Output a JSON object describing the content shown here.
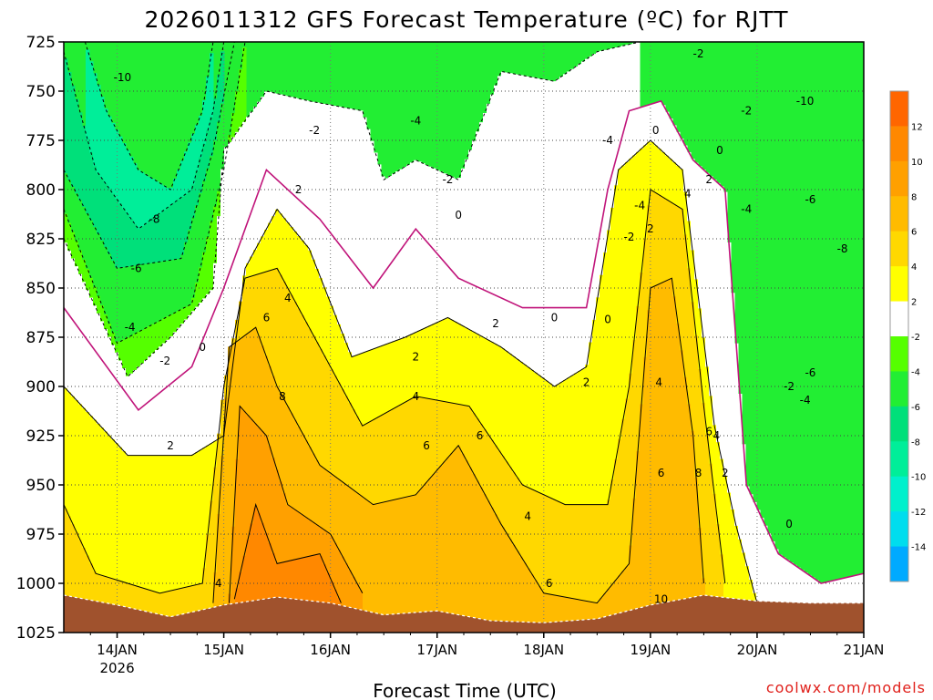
{
  "chart_data": {
    "type": "heatmap",
    "title": "2026011312 GFS Forecast Temperature (ºC) for RJTT",
    "xlabel": "Forecast Time (UTC)",
    "ylabel": "",
    "credit": "coolwx.com/models",
    "x_ticks": [
      {
        "label": "14JAN",
        "sub": "2026",
        "day": 0.5
      },
      {
        "label": "15JAN",
        "sub": "",
        "day": 1.5
      },
      {
        "label": "16JAN",
        "sub": "",
        "day": 2.5
      },
      {
        "label": "17JAN",
        "sub": "",
        "day": 3.5
      },
      {
        "label": "18JAN",
        "sub": "",
        "day": 4.5
      },
      {
        "label": "19JAN",
        "sub": "",
        "day": 5.5
      },
      {
        "label": "20JAN",
        "sub": "",
        "day": 6.5
      },
      {
        "label": "21JAN",
        "sub": "",
        "day": 7.5
      }
    ],
    "xlim": [
      0,
      7.5
    ],
    "y_ticks": [
      725,
      750,
      775,
      800,
      825,
      850,
      875,
      900,
      925,
      950,
      975,
      1000,
      1025
    ],
    "ylim": [
      725,
      1025
    ],
    "colorbar_ticks": [
      12,
      10,
      8,
      6,
      4,
      2,
      -2,
      -4,
      -6,
      -8,
      -10,
      -12,
      -14
    ],
    "colorbar_bins": [
      {
        "lo": 12,
        "hi": 14,
        "color": "#ff6600"
      },
      {
        "lo": 10,
        "hi": 12,
        "color": "#ff8800"
      },
      {
        "lo": 8,
        "hi": 10,
        "color": "#ffa000"
      },
      {
        "lo": 6,
        "hi": 8,
        "color": "#ffbb00"
      },
      {
        "lo": 4,
        "hi": 6,
        "color": "#ffd800"
      },
      {
        "lo": 2,
        "hi": 4,
        "color": "#ffff00"
      },
      {
        "lo": -2,
        "hi": 2,
        "color": "#ffffff"
      },
      {
        "lo": -4,
        "hi": -2,
        "color": "#55ff00"
      },
      {
        "lo": -6,
        "hi": -4,
        "color": "#22ee33"
      },
      {
        "lo": -8,
        "hi": -6,
        "color": "#00e07a"
      },
      {
        "lo": -10,
        "hi": -8,
        "color": "#00ee99"
      },
      {
        "lo": -12,
        "hi": -10,
        "color": "#00f0cc"
      },
      {
        "lo": -14,
        "hi": -12,
        "color": "#00ddee"
      },
      {
        "lo": -16,
        "hi": -14,
        "color": "#00aaff"
      }
    ],
    "ground_color": "#a0522d",
    "surface_pressure": [
      {
        "day": 0.0,
        "p": 1006
      },
      {
        "day": 0.5,
        "p": 1011
      },
      {
        "day": 1.0,
        "p": 1017
      },
      {
        "day": 1.5,
        "p": 1011
      },
      {
        "day": 2.0,
        "p": 1007
      },
      {
        "day": 2.5,
        "p": 1010
      },
      {
        "day": 3.0,
        "p": 1016
      },
      {
        "day": 3.5,
        "p": 1014
      },
      {
        "day": 4.0,
        "p": 1019
      },
      {
        "day": 4.5,
        "p": 1020
      },
      {
        "day": 5.0,
        "p": 1018
      },
      {
        "day": 5.5,
        "p": 1011
      },
      {
        "day": 6.0,
        "p": 1006
      },
      {
        "day": 6.5,
        "p": 1009
      },
      {
        "day": 7.0,
        "p": 1010
      },
      {
        "day": 7.5,
        "p": 1010
      }
    ],
    "series": [
      {
        "name": "-10",
        "level": -10,
        "dashed": true,
        "points": [
          {
            "day": 0.2,
            "p": 725
          },
          {
            "day": 0.4,
            "p": 760
          },
          {
            "day": 0.7,
            "p": 790
          },
          {
            "day": 1.0,
            "p": 800
          },
          {
            "day": 1.3,
            "p": 760
          },
          {
            "day": 1.4,
            "p": 725
          }
        ]
      },
      {
        "name": "-8",
        "level": -8,
        "dashed": true,
        "points": [
          {
            "day": 0.0,
            "p": 730
          },
          {
            "day": 0.3,
            "p": 790
          },
          {
            "day": 0.7,
            "p": 820
          },
          {
            "day": 1.2,
            "p": 800
          },
          {
            "day": 1.4,
            "p": 760
          },
          {
            "day": 1.5,
            "p": 725
          }
        ]
      },
      {
        "name": "-6",
        "level": -6,
        "dashed": true,
        "points": [
          {
            "day": 0.0,
            "p": 790
          },
          {
            "day": 0.5,
            "p": 840
          },
          {
            "day": 1.1,
            "p": 835
          },
          {
            "day": 1.4,
            "p": 780
          },
          {
            "day": 1.6,
            "p": 725
          }
        ]
      },
      {
        "name": "-4",
        "level": -4,
        "dashed": true,
        "points": [
          {
            "day": 0.0,
            "p": 810
          },
          {
            "day": 0.5,
            "p": 878
          },
          {
            "day": 1.2,
            "p": 858
          },
          {
            "day": 1.5,
            "p": 790
          },
          {
            "day": 1.7,
            "p": 725
          }
        ]
      },
      {
        "name": "-2",
        "level": -2,
        "dashed": true,
        "points": [
          {
            "day": 0.0,
            "p": 825
          },
          {
            "day": 0.6,
            "p": 895
          },
          {
            "day": 1.0,
            "p": 875
          },
          {
            "day": 1.4,
            "p": 850
          },
          {
            "day": 1.5,
            "p": 780
          },
          {
            "day": 1.9,
            "p": 750
          },
          {
            "day": 2.3,
            "p": 755
          },
          {
            "day": 2.8,
            "p": 760
          },
          {
            "day": 3.0,
            "p": 795
          },
          {
            "day": 3.3,
            "p": 785
          },
          {
            "day": 3.7,
            "p": 795
          },
          {
            "day": 4.1,
            "p": 740
          },
          {
            "day": 4.6,
            "p": 745
          },
          {
            "day": 5.0,
            "p": 730
          },
          {
            "day": 5.4,
            "p": 725
          }
        ]
      },
      {
        "name": "0",
        "level": 0,
        "dashed": false,
        "points": [
          {
            "day": 0.0,
            "p": 860
          },
          {
            "day": 0.7,
            "p": 912
          },
          {
            "day": 1.2,
            "p": 890
          },
          {
            "day": 1.5,
            "p": 850
          },
          {
            "day": 1.9,
            "p": 790
          },
          {
            "day": 2.4,
            "p": 815
          },
          {
            "day": 2.9,
            "p": 850
          },
          {
            "day": 3.3,
            "p": 820
          },
          {
            "day": 3.7,
            "p": 845
          },
          {
            "day": 4.3,
            "p": 860
          },
          {
            "day": 4.9,
            "p": 860
          },
          {
            "day": 5.1,
            "p": 800
          },
          {
            "day": 5.3,
            "p": 760
          },
          {
            "day": 5.6,
            "p": 755
          },
          {
            "day": 5.9,
            "p": 785
          },
          {
            "day": 6.2,
            "p": 800
          },
          {
            "day": 6.4,
            "p": 950
          },
          {
            "day": 6.7,
            "p": 985
          },
          {
            "day": 7.1,
            "p": 1000
          },
          {
            "day": 7.5,
            "p": 995
          }
        ]
      },
      {
        "name": "2",
        "level": 2,
        "dashed": false,
        "points": [
          {
            "day": 0.0,
            "p": 900
          },
          {
            "day": 0.6,
            "p": 935
          },
          {
            "day": 1.2,
            "p": 935
          },
          {
            "day": 1.5,
            "p": 925
          },
          {
            "day": 1.7,
            "p": 840
          },
          {
            "day": 2.0,
            "p": 810
          },
          {
            "day": 2.3,
            "p": 830
          },
          {
            "day": 2.7,
            "p": 885
          },
          {
            "day": 3.2,
            "p": 875
          },
          {
            "day": 3.6,
            "p": 865
          },
          {
            "day": 4.1,
            "p": 880
          },
          {
            "day": 4.6,
            "p": 900
          },
          {
            "day": 4.9,
            "p": 890
          },
          {
            "day": 5.2,
            "p": 790
          },
          {
            "day": 5.5,
            "p": 775
          },
          {
            "day": 5.8,
            "p": 790
          },
          {
            "day": 6.1,
            "p": 920
          },
          {
            "day": 6.3,
            "p": 970
          },
          {
            "day": 6.5,
            "p": 1010
          }
        ]
      },
      {
        "name": "4",
        "level": 4,
        "dashed": false,
        "points": [
          {
            "day": 0.0,
            "p": 960
          },
          {
            "day": 0.3,
            "p": 995
          },
          {
            "day": 0.9,
            "p": 1005
          },
          {
            "day": 1.3,
            "p": 1000
          },
          {
            "day": 1.5,
            "p": 900
          },
          {
            "day": 1.7,
            "p": 845
          },
          {
            "day": 2.0,
            "p": 840
          },
          {
            "day": 2.3,
            "p": 870
          },
          {
            "day": 2.8,
            "p": 920
          },
          {
            "day": 3.3,
            "p": 905
          },
          {
            "day": 3.8,
            "p": 910
          },
          {
            "day": 4.3,
            "p": 950
          },
          {
            "day": 4.7,
            "p": 960
          },
          {
            "day": 5.1,
            "p": 960
          },
          {
            "day": 5.3,
            "p": 900
          },
          {
            "day": 5.5,
            "p": 800
          },
          {
            "day": 5.8,
            "p": 810
          },
          {
            "day": 6.0,
            "p": 910
          },
          {
            "day": 6.2,
            "p": 1000
          }
        ]
      },
      {
        "name": "6",
        "level": 6,
        "dashed": false,
        "points": [
          {
            "day": 1.4,
            "p": 1010
          },
          {
            "day": 1.55,
            "p": 880
          },
          {
            "day": 1.8,
            "p": 870
          },
          {
            "day": 2.0,
            "p": 900
          },
          {
            "day": 2.4,
            "p": 940
          },
          {
            "day": 2.9,
            "p": 960
          },
          {
            "day": 3.3,
            "p": 955
          },
          {
            "day": 3.7,
            "p": 930
          },
          {
            "day": 4.1,
            "p": 970
          },
          {
            "day": 4.5,
            "p": 1005
          },
          {
            "day": 5.0,
            "p": 1010
          },
          {
            "day": 5.3,
            "p": 990
          },
          {
            "day": 5.5,
            "p": 850
          },
          {
            "day": 5.7,
            "p": 845
          },
          {
            "day": 5.9,
            "p": 925
          },
          {
            "day": 6.0,
            "p": 1000
          }
        ]
      },
      {
        "name": "8",
        "level": 8,
        "dashed": false,
        "points": [
          {
            "day": 1.55,
            "p": 1010
          },
          {
            "day": 1.65,
            "p": 910
          },
          {
            "day": 1.9,
            "p": 925
          },
          {
            "day": 2.1,
            "p": 960
          },
          {
            "day": 2.5,
            "p": 975
          },
          {
            "day": 2.8,
            "p": 1005
          }
        ]
      },
      {
        "name": "10",
        "level": 10,
        "dashed": false,
        "points": [
          {
            "day": 1.6,
            "p": 1008
          },
          {
            "day": 1.8,
            "p": 960
          },
          {
            "day": 2.0,
            "p": 990
          },
          {
            "day": 2.4,
            "p": 985
          },
          {
            "day": 2.6,
            "p": 1010
          }
        ]
      }
    ],
    "labels": [
      {
        "text": "-10",
        "day": 0.55,
        "p": 743
      },
      {
        "text": "-8",
        "day": 0.85,
        "p": 815
      },
      {
        "text": "-6",
        "day": 0.68,
        "p": 840
      },
      {
        "text": "-4",
        "day": 0.62,
        "p": 870
      },
      {
        "text": "-2",
        "day": 0.95,
        "p": 887
      },
      {
        "text": "0",
        "day": 1.3,
        "p": 880
      },
      {
        "text": "2",
        "day": 1.0,
        "p": 930
      },
      {
        "text": "4",
        "day": 1.45,
        "p": 1000
      },
      {
        "text": "-2",
        "day": 2.35,
        "p": 770
      },
      {
        "text": "2",
        "day": 2.2,
        "p": 800
      },
      {
        "text": "4",
        "day": 2.1,
        "p": 855
      },
      {
        "text": "6",
        "day": 1.9,
        "p": 865
      },
      {
        "text": "8",
        "day": 2.05,
        "p": 905
      },
      {
        "text": "-4",
        "day": 3.3,
        "p": 765
      },
      {
        "text": "-2",
        "day": 3.6,
        "p": 795
      },
      {
        "text": "0",
        "day": 3.7,
        "p": 813
      },
      {
        "text": "2",
        "day": 4.05,
        "p": 868
      },
      {
        "text": "2",
        "day": 3.3,
        "p": 885
      },
      {
        "text": "4",
        "day": 3.3,
        "p": 905
      },
      {
        "text": "6",
        "day": 3.4,
        "p": 930
      },
      {
        "text": "6",
        "day": 3.9,
        "p": 925
      },
      {
        "text": "4",
        "day": 4.35,
        "p": 966
      },
      {
        "text": "6",
        "day": 4.55,
        "p": 1000
      },
      {
        "text": "0",
        "day": 4.6,
        "p": 865
      },
      {
        "text": "2",
        "day": 4.9,
        "p": 898
      },
      {
        "text": "-4",
        "day": 5.1,
        "p": 775
      },
      {
        "text": "-4",
        "day": 5.4,
        "p": 808
      },
      {
        "text": "-2",
        "day": 5.3,
        "p": 824
      },
      {
        "text": "0",
        "day": 5.1,
        "p": 866
      },
      {
        "text": "2",
        "day": 5.5,
        "p": 820
      },
      {
        "text": "0",
        "day": 5.55,
        "p": 770
      },
      {
        "text": "-2",
        "day": 5.95,
        "p": 731
      },
      {
        "text": "4",
        "day": 5.85,
        "p": 802
      },
      {
        "text": "2",
        "day": 6.05,
        "p": 795
      },
      {
        "text": "0",
        "day": 6.15,
        "p": 780
      },
      {
        "text": "4",
        "day": 5.58,
        "p": 898
      },
      {
        "text": "6",
        "day": 5.6,
        "p": 944
      },
      {
        "text": "8",
        "day": 5.95,
        "p": 944
      },
      {
        "text": "6",
        "day": 6.05,
        "p": 923
      },
      {
        "text": "4",
        "day": 6.12,
        "p": 925
      },
      {
        "text": "2",
        "day": 6.2,
        "p": 944
      },
      {
        "text": "10",
        "day": 5.6,
        "p": 1008
      },
      {
        "text": "-2",
        "day": 6.4,
        "p": 760
      },
      {
        "text": "-4",
        "day": 6.4,
        "p": 810
      },
      {
        "text": "-10",
        "day": 6.95,
        "p": 755
      },
      {
        "text": "-6",
        "day": 7.0,
        "p": 805
      },
      {
        "text": "-8",
        "day": 7.3,
        "p": 830
      },
      {
        "text": "-6",
        "day": 7.0,
        "p": 893
      },
      {
        "text": "-4",
        "day": 6.95,
        "p": 907
      },
      {
        "text": "-2",
        "day": 6.8,
        "p": 900
      },
      {
        "text": "0",
        "day": 6.8,
        "p": 970
      }
    ]
  }
}
